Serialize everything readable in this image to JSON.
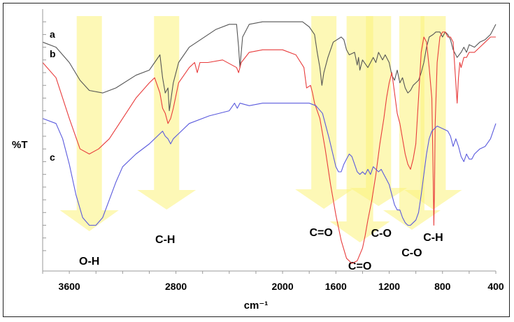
{
  "chart_data": {
    "type": "line",
    "title": "",
    "xlabel": "cm⁻¹",
    "ylabel": "%T",
    "xlim": [
      3800,
      400
    ],
    "x_reversed": true,
    "ylim": [
      -8,
      95
    ],
    "y_ticks_labeled": false,
    "grid": false,
    "x_ticks": [
      3600,
      2800,
      2000,
      1600,
      1200,
      800,
      400
    ],
    "x_tick_labels": [
      "3600",
      "2800",
      "2000",
      "1600",
      "1200",
      "800",
      "400"
    ],
    "series": [
      {
        "name": "a",
        "label": "a",
        "color": "#555555",
        "x": [
          3800,
          3700,
          3600,
          3520,
          3450,
          3350,
          3250,
          3100,
          3000,
          2960,
          2920,
          2900,
          2880,
          2860,
          2850,
          2820,
          2780,
          2700,
          2500,
          2400,
          2345,
          2330,
          2320,
          2300,
          2250,
          2150,
          2050,
          1950,
          1850,
          1800,
          1760,
          1740,
          1720,
          1705,
          1690,
          1660,
          1620,
          1560,
          1540,
          1520,
          1500,
          1460,
          1440,
          1430,
          1420,
          1400,
          1360,
          1320,
          1300,
          1280,
          1250,
          1230,
          1200,
          1180,
          1160,
          1140,
          1120,
          1100,
          1080,
          1060,
          1040,
          1020,
          1000,
          980,
          960,
          940,
          920,
          900,
          870,
          850,
          820,
          800,
          780,
          760,
          740,
          720,
          690,
          660,
          640,
          620,
          600,
          560,
          520,
          480,
          440,
          400
        ],
        "y": [
          82,
          80,
          74,
          67,
          63,
          62,
          64,
          69,
          71,
          74,
          77,
          68,
          62,
          64,
          55,
          66,
          74,
          80,
          87,
          89,
          89,
          80,
          72,
          84,
          89,
          90,
          90,
          90,
          90,
          88,
          85,
          78,
          72,
          65,
          70,
          76,
          82,
          84,
          83,
          79,
          77,
          78,
          73,
          76,
          71,
          75,
          72,
          76,
          74,
          78,
          75,
          77,
          74,
          69,
          67,
          71,
          66,
          68,
          64,
          62,
          63,
          65,
          66,
          67,
          70,
          74,
          80,
          84,
          85,
          86,
          86,
          84,
          86,
          85,
          83,
          79,
          76,
          78,
          80,
          78,
          81,
          80,
          82,
          83,
          85,
          89
        ]
      },
      {
        "name": "b",
        "label": "b",
        "color": "#e83c3c",
        "x": [
          3800,
          3700,
          3600,
          3520,
          3450,
          3380,
          3300,
          3200,
          3100,
          3000,
          2960,
          2920,
          2900,
          2880,
          2860,
          2840,
          2820,
          2780,
          2700,
          2660,
          2640,
          2620,
          2560,
          2450,
          2345,
          2330,
          2310,
          2250,
          2150,
          2000,
          1900,
          1840,
          1820,
          1790,
          1775,
          1760,
          1720,
          1680,
          1640,
          1600,
          1560,
          1520,
          1480,
          1440,
          1400,
          1380,
          1360,
          1330,
          1300,
          1270,
          1240,
          1220,
          1200,
          1180,
          1160,
          1140,
          1120,
          1100,
          1080,
          1060,
          1040,
          1020,
          1000,
          980,
          960,
          940,
          920,
          900,
          880,
          870,
          865,
          860,
          855,
          840,
          820,
          800,
          780,
          760,
          740,
          720,
          700,
          690,
          680,
          670,
          660,
          640,
          620,
          600,
          560,
          520,
          480,
          440,
          400
        ],
        "y": [
          74,
          68,
          52,
          40,
          38,
          40,
          44,
          52,
          60,
          66,
          68,
          62,
          56,
          54,
          50,
          52,
          56,
          66,
          72,
          74,
          70,
          74,
          74,
          75,
          72,
          70,
          74,
          78,
          79,
          79,
          77,
          72,
          64,
          65,
          62,
          58,
          52,
          40,
          26,
          14,
          4,
          -3,
          -5,
          -4,
          1,
          6,
          12,
          20,
          30,
          42,
          52,
          60,
          66,
          70,
          62,
          54,
          50,
          44,
          38,
          34,
          32,
          36,
          42,
          60,
          78,
          84,
          82,
          72,
          60,
          30,
          10,
          24,
          50,
          74,
          84,
          86,
          86,
          84,
          84,
          82,
          66,
          58,
          68,
          74,
          72,
          76,
          76,
          78,
          78,
          80,
          82,
          84,
          84
        ]
      },
      {
        "name": "c",
        "label": "c",
        "color": "#5a5add",
        "x": [
          3800,
          3700,
          3650,
          3600,
          3550,
          3500,
          3450,
          3400,
          3350,
          3300,
          3250,
          3200,
          3100,
          3000,
          2960,
          2920,
          2900,
          2880,
          2860,
          2840,
          2820,
          2700,
          2550,
          2400,
          2360,
          2340,
          2320,
          2250,
          2150,
          2000,
          1900,
          1800,
          1750,
          1700,
          1650,
          1600,
          1580,
          1560,
          1540,
          1520,
          1500,
          1480,
          1460,
          1440,
          1420,
          1400,
          1380,
          1360,
          1340,
          1320,
          1300,
          1280,
          1260,
          1240,
          1220,
          1200,
          1180,
          1160,
          1140,
          1120,
          1100,
          1080,
          1060,
          1040,
          1020,
          1000,
          980,
          960,
          940,
          920,
          900,
          880,
          860,
          840,
          800,
          760,
          740,
          720,
          700,
          680,
          660,
          640,
          620,
          600,
          580,
          560,
          520,
          480,
          440,
          400
        ],
        "y": [
          52,
          50,
          44,
          34,
          22,
          13,
          10,
          10,
          13,
          20,
          27,
          33,
          38,
          42,
          44,
          46,
          47,
          45,
          44,
          42,
          44,
          50,
          53,
          55,
          58,
          56,
          58,
          57,
          58,
          58,
          58,
          58,
          57,
          54,
          44,
          33,
          31,
          31,
          34,
          36,
          38,
          37,
          34,
          31,
          30,
          31,
          30,
          32,
          30,
          33,
          32,
          31,
          32,
          30,
          28,
          26,
          22,
          18,
          16,
          16,
          13,
          11,
          10,
          10,
          11,
          12,
          15,
          22,
          30,
          38,
          44,
          47,
          48,
          49,
          48,
          47,
          45,
          41,
          44,
          41,
          37,
          35,
          38,
          36,
          36,
          38,
          40,
          41,
          44,
          50
        ]
      }
    ],
    "annotations": [
      {
        "label": "O-H",
        "center": 3450,
        "direction": "down"
      },
      {
        "label": "C-H",
        "center": 2870,
        "direction": "down"
      },
      {
        "label": "C=O",
        "center": 1690,
        "direction": "down"
      },
      {
        "label": "C=O",
        "center": 1420,
        "direction": "down"
      },
      {
        "label": "C-O",
        "center": 1280,
        "direction": "down"
      },
      {
        "label": "C-O",
        "center": 1030,
        "direction": "down"
      },
      {
        "label": "C-H",
        "center": 870,
        "direction": "down"
      }
    ]
  }
}
